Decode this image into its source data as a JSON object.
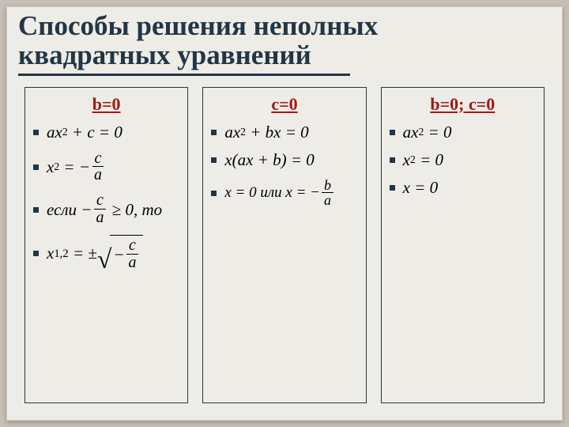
{
  "title": {
    "line1": "Способы решения неполных",
    "line2": "квадратных уравнений",
    "color": "#213646",
    "fontsize": 35
  },
  "columns": [
    {
      "header": "b=0",
      "header_color": "#a31616",
      "equations": [
        {
          "display": "ax^2 + c = 0"
        },
        {
          "display": "x^2 = -c/a"
        },
        {
          "display": "если -c/a ≥ 0, то"
        },
        {
          "display": "x_{1,2} = ±√(-c/a)"
        }
      ]
    },
    {
      "header": "c=0",
      "header_color": "#a31616",
      "equations": [
        {
          "display": "ax^2 + bx = 0"
        },
        {
          "display": "x(ax + b) = 0"
        },
        {
          "display": "x = 0 или x = -b/a"
        }
      ]
    },
    {
      "header": "b=0; c=0",
      "header_color": "#a31616",
      "equations": [
        {
          "display": "ax^2 = 0"
        },
        {
          "display": "x^2 = 0"
        },
        {
          "display": "x = 0"
        }
      ]
    }
  ],
  "styling": {
    "slide_bg": "#eeece6",
    "outer_bg": "#c7bfb6",
    "box_border": "#213646",
    "bullet_color": "#213646",
    "math_font": "Times New Roman",
    "math_fontsize": 21
  }
}
